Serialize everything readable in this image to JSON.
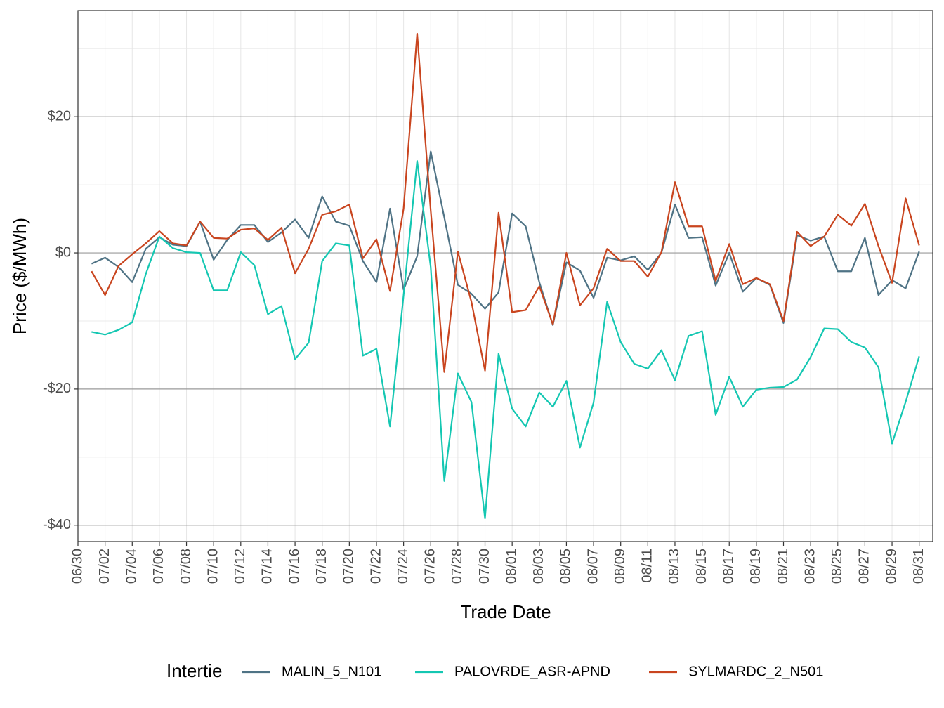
{
  "chart_data": {
    "type": "line",
    "y_label": "Price ($/MWh)",
    "x_label": "Trade Date",
    "legend_title": "Intertie",
    "legend_position": "bottom",
    "grid": true,
    "x": [
      "07/01",
      "07/02",
      "07/03",
      "07/04",
      "07/05",
      "07/06",
      "07/07",
      "07/08",
      "07/09",
      "07/10",
      "07/11",
      "07/12",
      "07/13",
      "07/14",
      "07/15",
      "07/16",
      "07/17",
      "07/18",
      "07/19",
      "07/20",
      "07/21",
      "07/22",
      "07/23",
      "07/24",
      "07/25",
      "07/26",
      "07/27",
      "07/28",
      "07/29",
      "07/30",
      "07/31",
      "08/01",
      "08/02",
      "08/03",
      "08/04",
      "08/05",
      "08/06",
      "08/07",
      "08/08",
      "08/09",
      "08/10",
      "08/11",
      "08/12",
      "08/13",
      "08/14",
      "08/15",
      "08/16",
      "08/17",
      "08/18",
      "08/19",
      "08/20",
      "08/21",
      "08/22",
      "08/23",
      "08/24",
      "08/25",
      "08/26",
      "08/27",
      "08/28",
      "08/29",
      "08/30",
      "08/31"
    ],
    "xlim": [
      "06/30",
      "09/01"
    ],
    "xticks": [
      "06/30",
      "07/02",
      "07/04",
      "07/06",
      "07/08",
      "07/10",
      "07/12",
      "07/14",
      "07/16",
      "07/18",
      "07/20",
      "07/22",
      "07/24",
      "07/26",
      "07/28",
      "07/30",
      "08/01",
      "08/03",
      "08/05",
      "08/07",
      "08/09",
      "08/11",
      "08/13",
      "08/15",
      "08/17",
      "08/19",
      "08/21",
      "08/23",
      "08/25",
      "08/27",
      "08/29",
      "08/31"
    ],
    "ylim": [
      -42.4,
      35.6
    ],
    "yticks": [
      {
        "value": -40,
        "label": "-$40"
      },
      {
        "value": -20,
        "label": "-$20"
      },
      {
        "value": 0,
        "label": "$0"
      },
      {
        "value": 20,
        "label": "$20"
      }
    ],
    "minor_yticks": [
      -30,
      -10,
      10,
      30
    ],
    "series": [
      {
        "name": "MALIN_5_N101",
        "color": "#4f7385",
        "values": [
          -1.6,
          -0.7,
          -2.1,
          -4.3,
          0.6,
          2.3,
          1.2,
          1.0,
          4.6,
          -1.0,
          1.9,
          4.1,
          4.1,
          1.6,
          3.0,
          4.9,
          2.2,
          8.3,
          4.6,
          4.0,
          -1.2,
          -4.3,
          6.5,
          -5.4,
          -0.5,
          14.9,
          5.2,
          -4.7,
          -6.0,
          -8.2,
          -5.8,
          5.8,
          3.9,
          -4.3,
          -10.6,
          -1.4,
          -2.6,
          -6.6,
          -0.7,
          -1.1,
          -0.5,
          -2.5,
          0,
          7.1,
          2.2,
          2.3,
          -4.8,
          0,
          -5.7,
          -3.7,
          -4.7,
          -10.3,
          2.6,
          1.8,
          2.4,
          -2.7,
          -2.7,
          2.2,
          -6.2,
          -4.0,
          -5.2,
          0.2
        ]
      },
      {
        "name": "PALOVRDE_ASR-APND",
        "color": "#14c7b2",
        "values": [
          -11.6,
          -12.0,
          -11.3,
          -10.2,
          -3.1,
          2.4,
          0.7,
          0.1,
          0,
          -5.5,
          -5.5,
          0.1,
          -1.8,
          -9.0,
          -7.8,
          -15.6,
          -13.2,
          -1.2,
          1.4,
          1.1,
          -15.1,
          -14.1,
          -25.5,
          -6.2,
          13.5,
          -2.1,
          -33.5,
          -17.7,
          -21.9,
          -39.0,
          -14.8,
          -22.9,
          -25.5,
          -20.5,
          -22.6,
          -18.8,
          -28.6,
          -22.0,
          -7.2,
          -13.1,
          -16.3,
          -17.0,
          -14.3,
          -18.7,
          -12.2,
          -11.5,
          -23.8,
          -18.2,
          -22.6,
          -20.1,
          -19.8,
          -19.7,
          -18.6,
          -15.3,
          -11.1,
          -11.2,
          -13.1,
          -13.9,
          -16.8,
          -28.0,
          -21.9,
          -15.2
        ]
      },
      {
        "name": "SYLMARDC_2_N501",
        "color": "#c9451f",
        "values": [
          -2.7,
          -6.2,
          -1.9,
          -0.2,
          1.4,
          3.2,
          1.4,
          1.1,
          4.6,
          2.2,
          2.1,
          3.4,
          3.6,
          1.9,
          3.7,
          -3.0,
          0.6,
          5.6,
          6.1,
          7.1,
          -0.8,
          2.0,
          -5.6,
          6.5,
          32.2,
          6.2,
          -17.5,
          0.2,
          -7.2,
          -17.3,
          5.9,
          -8.7,
          -8.4,
          -4.9,
          -10.5,
          0,
          -7.7,
          -5.2,
          0.6,
          -1.2,
          -1.2,
          -3.5,
          0.1,
          10.4,
          3.9,
          3.9,
          -4.1,
          1.3,
          -4.6,
          -3.7,
          -4.6,
          -10.0,
          3.1,
          1.0,
          2.4,
          5.6,
          4.0,
          7.2,
          1.0,
          -4.4,
          8.0,
          1.1
        ]
      }
    ]
  }
}
